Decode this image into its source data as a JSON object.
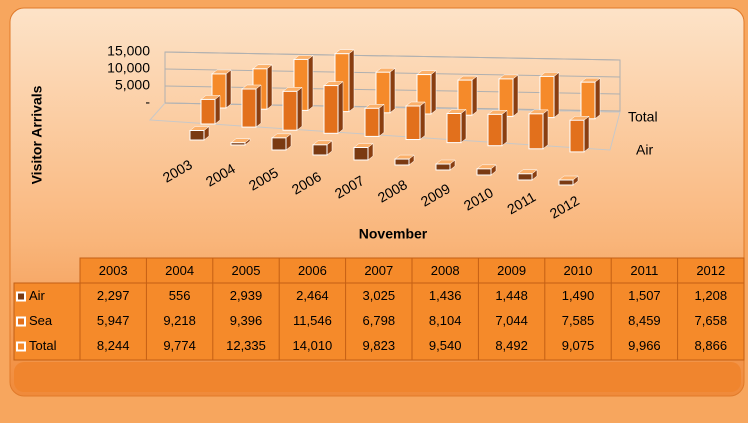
{
  "chart_data": {
    "type": "bar3d",
    "y_label": "Visitor Arrivals",
    "x_label": "November",
    "categories": [
      "2003",
      "2004",
      "2005",
      "2006",
      "2007",
      "2008",
      "2009",
      "2010",
      "2011",
      "2012"
    ],
    "ylim": [
      0,
      15000
    ],
    "yticks": [
      {
        "value": 0,
        "label": "-"
      },
      {
        "value": 5000,
        "label": "5,000"
      },
      {
        "value": 10000,
        "label": "10,000"
      },
      {
        "value": 15000,
        "label": "15,000"
      }
    ],
    "series": [
      {
        "name": "Air",
        "color": "#7a3a12",
        "values": [
          2297,
          556,
          2939,
          2464,
          3025,
          1436,
          1448,
          1490,
          1507,
          1208
        ],
        "value_labels": [
          "2,297",
          "556",
          "2,939",
          "2,464",
          "3,025",
          "1,436",
          "1,448",
          "1,490",
          "1,507",
          "1,208"
        ]
      },
      {
        "name": "Sea",
        "color": "#e2701c",
        "values": [
          5947,
          9218,
          9396,
          11546,
          6798,
          8104,
          7044,
          7585,
          8459,
          7658
        ],
        "value_labels": [
          "5,947",
          "9,218",
          "9,396",
          "11,546",
          "6,798",
          "8,104",
          "7,044",
          "7,585",
          "8,459",
          "7,658"
        ]
      },
      {
        "name": "Total",
        "color": "#f58a2a",
        "values": [
          8244,
          9774,
          12335,
          14010,
          9823,
          9540,
          8492,
          9075,
          9966,
          8866
        ],
        "value_labels": [
          "8,244",
          "9,774",
          "12,335",
          "14,010",
          "9,823",
          "9,540",
          "8,492",
          "9,075",
          "9,966",
          "8,866"
        ]
      }
    ]
  }
}
